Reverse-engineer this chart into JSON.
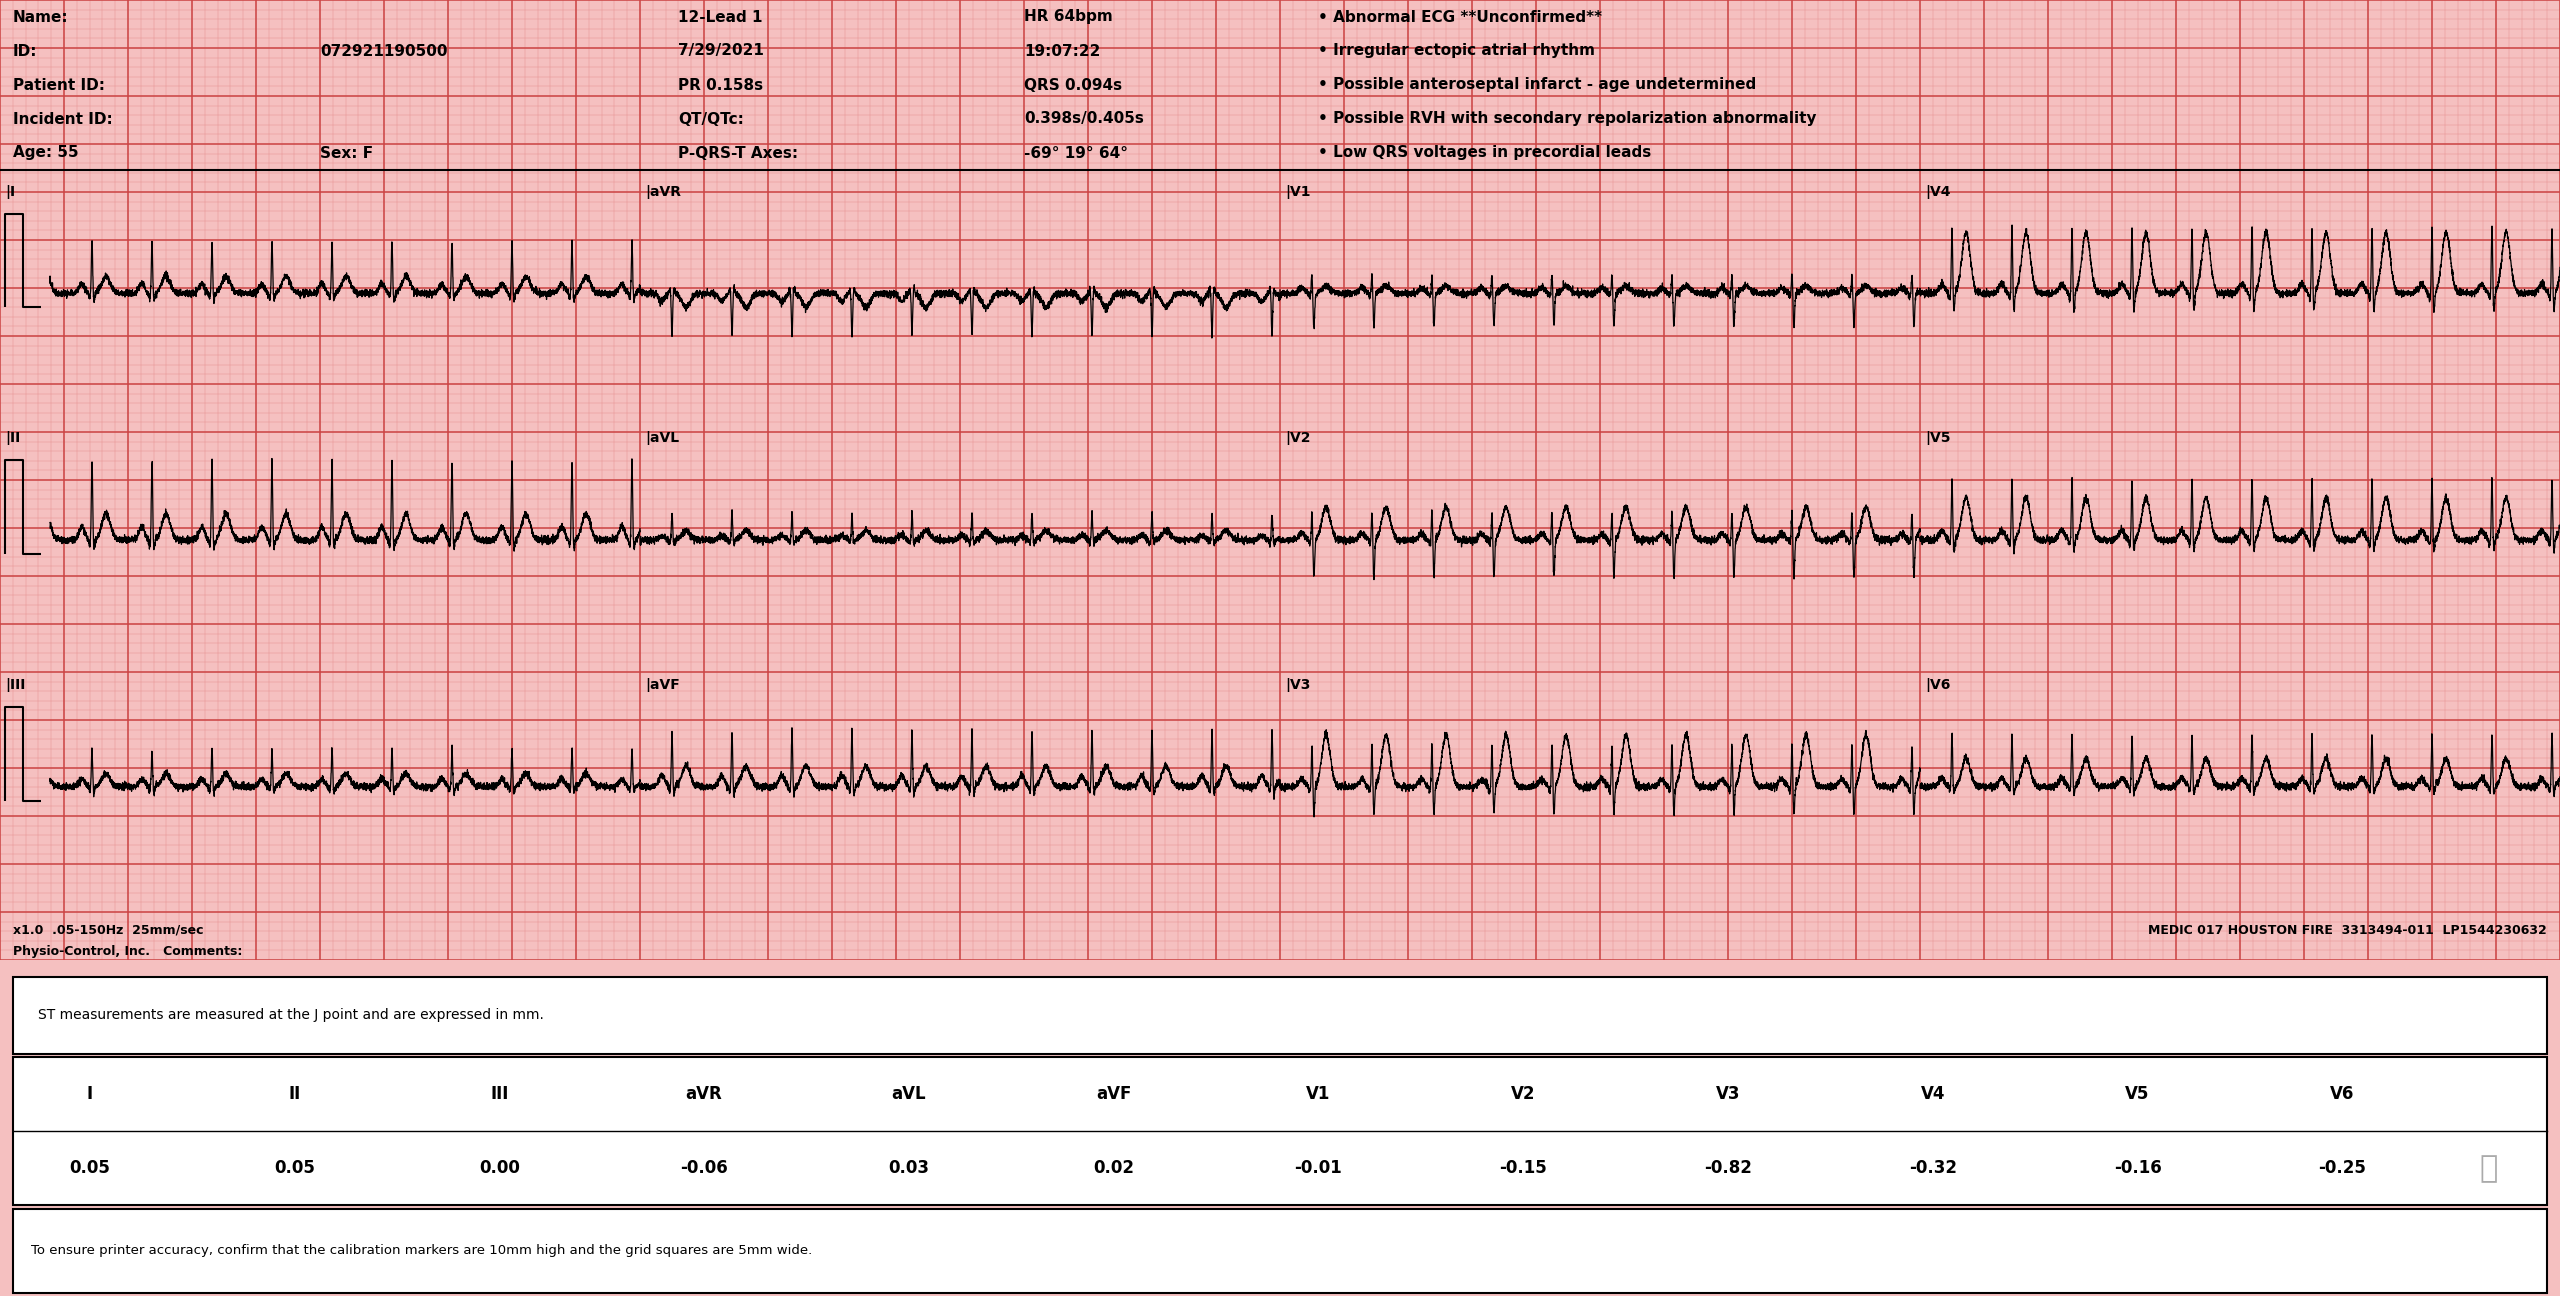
{
  "bg_color": "#f5c0c0",
  "grid_minor_color": "#e89090",
  "grid_major_color": "#cc4444",
  "ecg_color": "#000000",
  "header_lines": [
    [
      "Name:",
      "",
      "12-Lead 1",
      "HR 64bpm",
      "• Abnormal ECG **Unconfirmed**"
    ],
    [
      "ID:",
      "072921190500",
      "7/29/2021",
      "19:07:22",
      "• Irregular ectopic atrial rhythm"
    ],
    [
      "Patient ID:",
      "",
      "PR 0.158s",
      "QRS 0.094s",
      "• Possible anteroseptal infarct - age undetermined"
    ],
    [
      "Incident ID:",
      "",
      "QT/QTc:",
      "0.398s/0.405s",
      "• Possible RVH with secondary repolarization abnormality"
    ],
    [
      "Age: 55",
      "Sex: F",
      "P-QRS-T Axes:",
      "-69° 19° 64°",
      "• Low QRS voltages in precordial leads"
    ]
  ],
  "footer_left": "x1.0  .05-150Hz  25mm/sec",
  "footer_right": "MEDIC 017 HOUSTON FIRE  3313494-011  LP1544230632",
  "footer2": "Physio-Control, Inc.   Comments:",
  "st_note": "ST measurements are measured at the J point and are expressed in mm.",
  "st_leads": [
    "I",
    "II",
    "III",
    "aVR",
    "aVL",
    "aVF",
    "V1",
    "V2",
    "V3",
    "V4",
    "V5",
    "V6"
  ],
  "st_values": [
    "0.05",
    "0.05",
    "0.00",
    "-0.06",
    "0.03",
    "0.02",
    "-0.01",
    "-0.15",
    "-0.82",
    "-0.32",
    "-0.16",
    "-0.25"
  ],
  "printer_note": "To ensure printer accuracy, confirm that the calibration markers are 10mm high and the grid squares are 5mm wide.",
  "lead_order": [
    [
      "I",
      "aVR",
      "V1",
      "V4"
    ],
    [
      "II",
      "aVL",
      "V2",
      "V5"
    ],
    [
      "III",
      "aVF",
      "V3",
      "V6"
    ]
  ]
}
